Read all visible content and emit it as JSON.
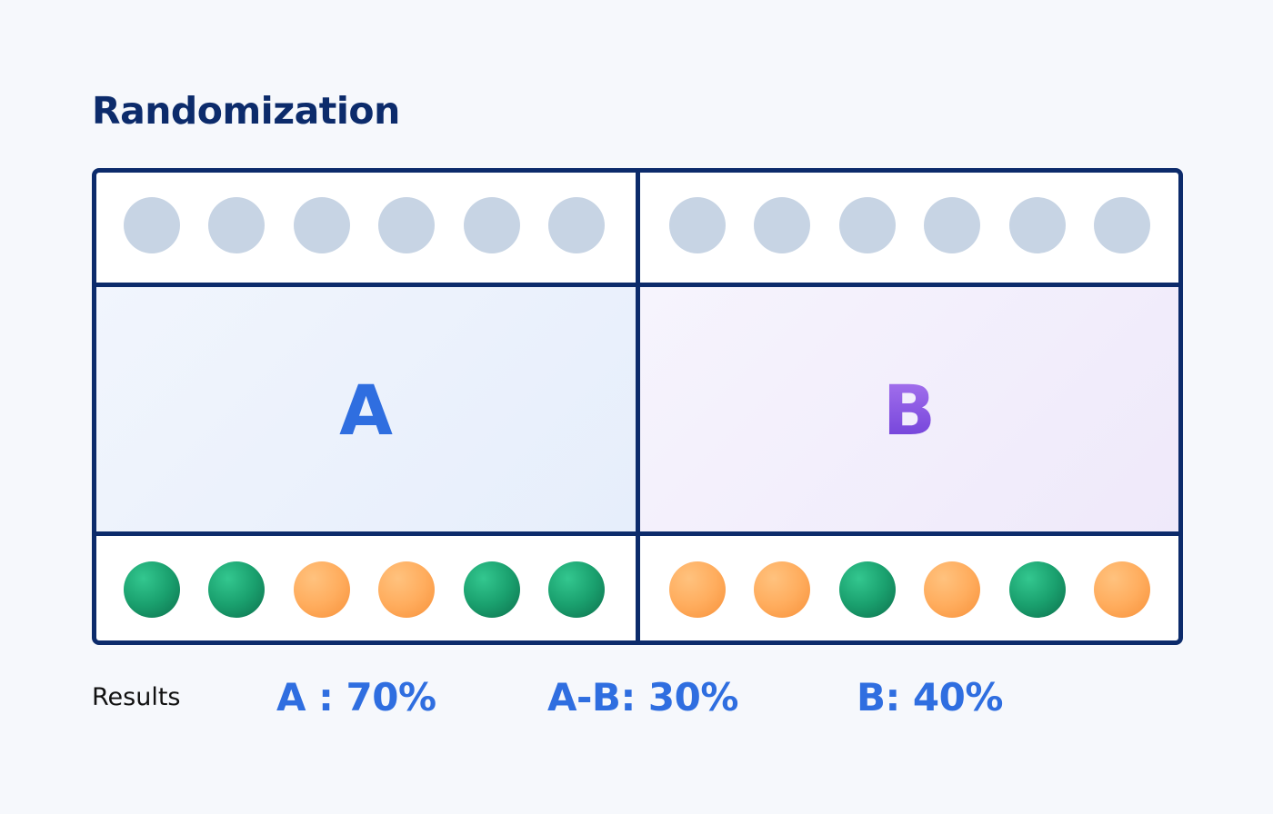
{
  "title": "Randomization",
  "variants": {
    "a": {
      "label": "A"
    },
    "b": {
      "label": "B"
    }
  },
  "population": {
    "group_a": [
      "grey",
      "grey",
      "grey",
      "grey",
      "grey",
      "grey"
    ],
    "group_b": [
      "grey",
      "grey",
      "grey",
      "grey",
      "grey",
      "grey"
    ]
  },
  "outcomes": {
    "group_a": [
      "green",
      "green",
      "orange",
      "orange",
      "green",
      "green"
    ],
    "group_b": [
      "orange",
      "orange",
      "green",
      "orange",
      "green",
      "orange"
    ]
  },
  "colors": {
    "frame": "#0c2b6b",
    "neutral_dot": "#c7d4e4",
    "green_dot": "#1aa06e",
    "orange_dot": "#ffad5e",
    "accent_blue": "#2f6ee0",
    "accent_purple": "#8a55e6"
  },
  "results": {
    "label": "Results",
    "a": "A : 70%",
    "ab": "A-B: 30%",
    "b": "B: 40%"
  }
}
